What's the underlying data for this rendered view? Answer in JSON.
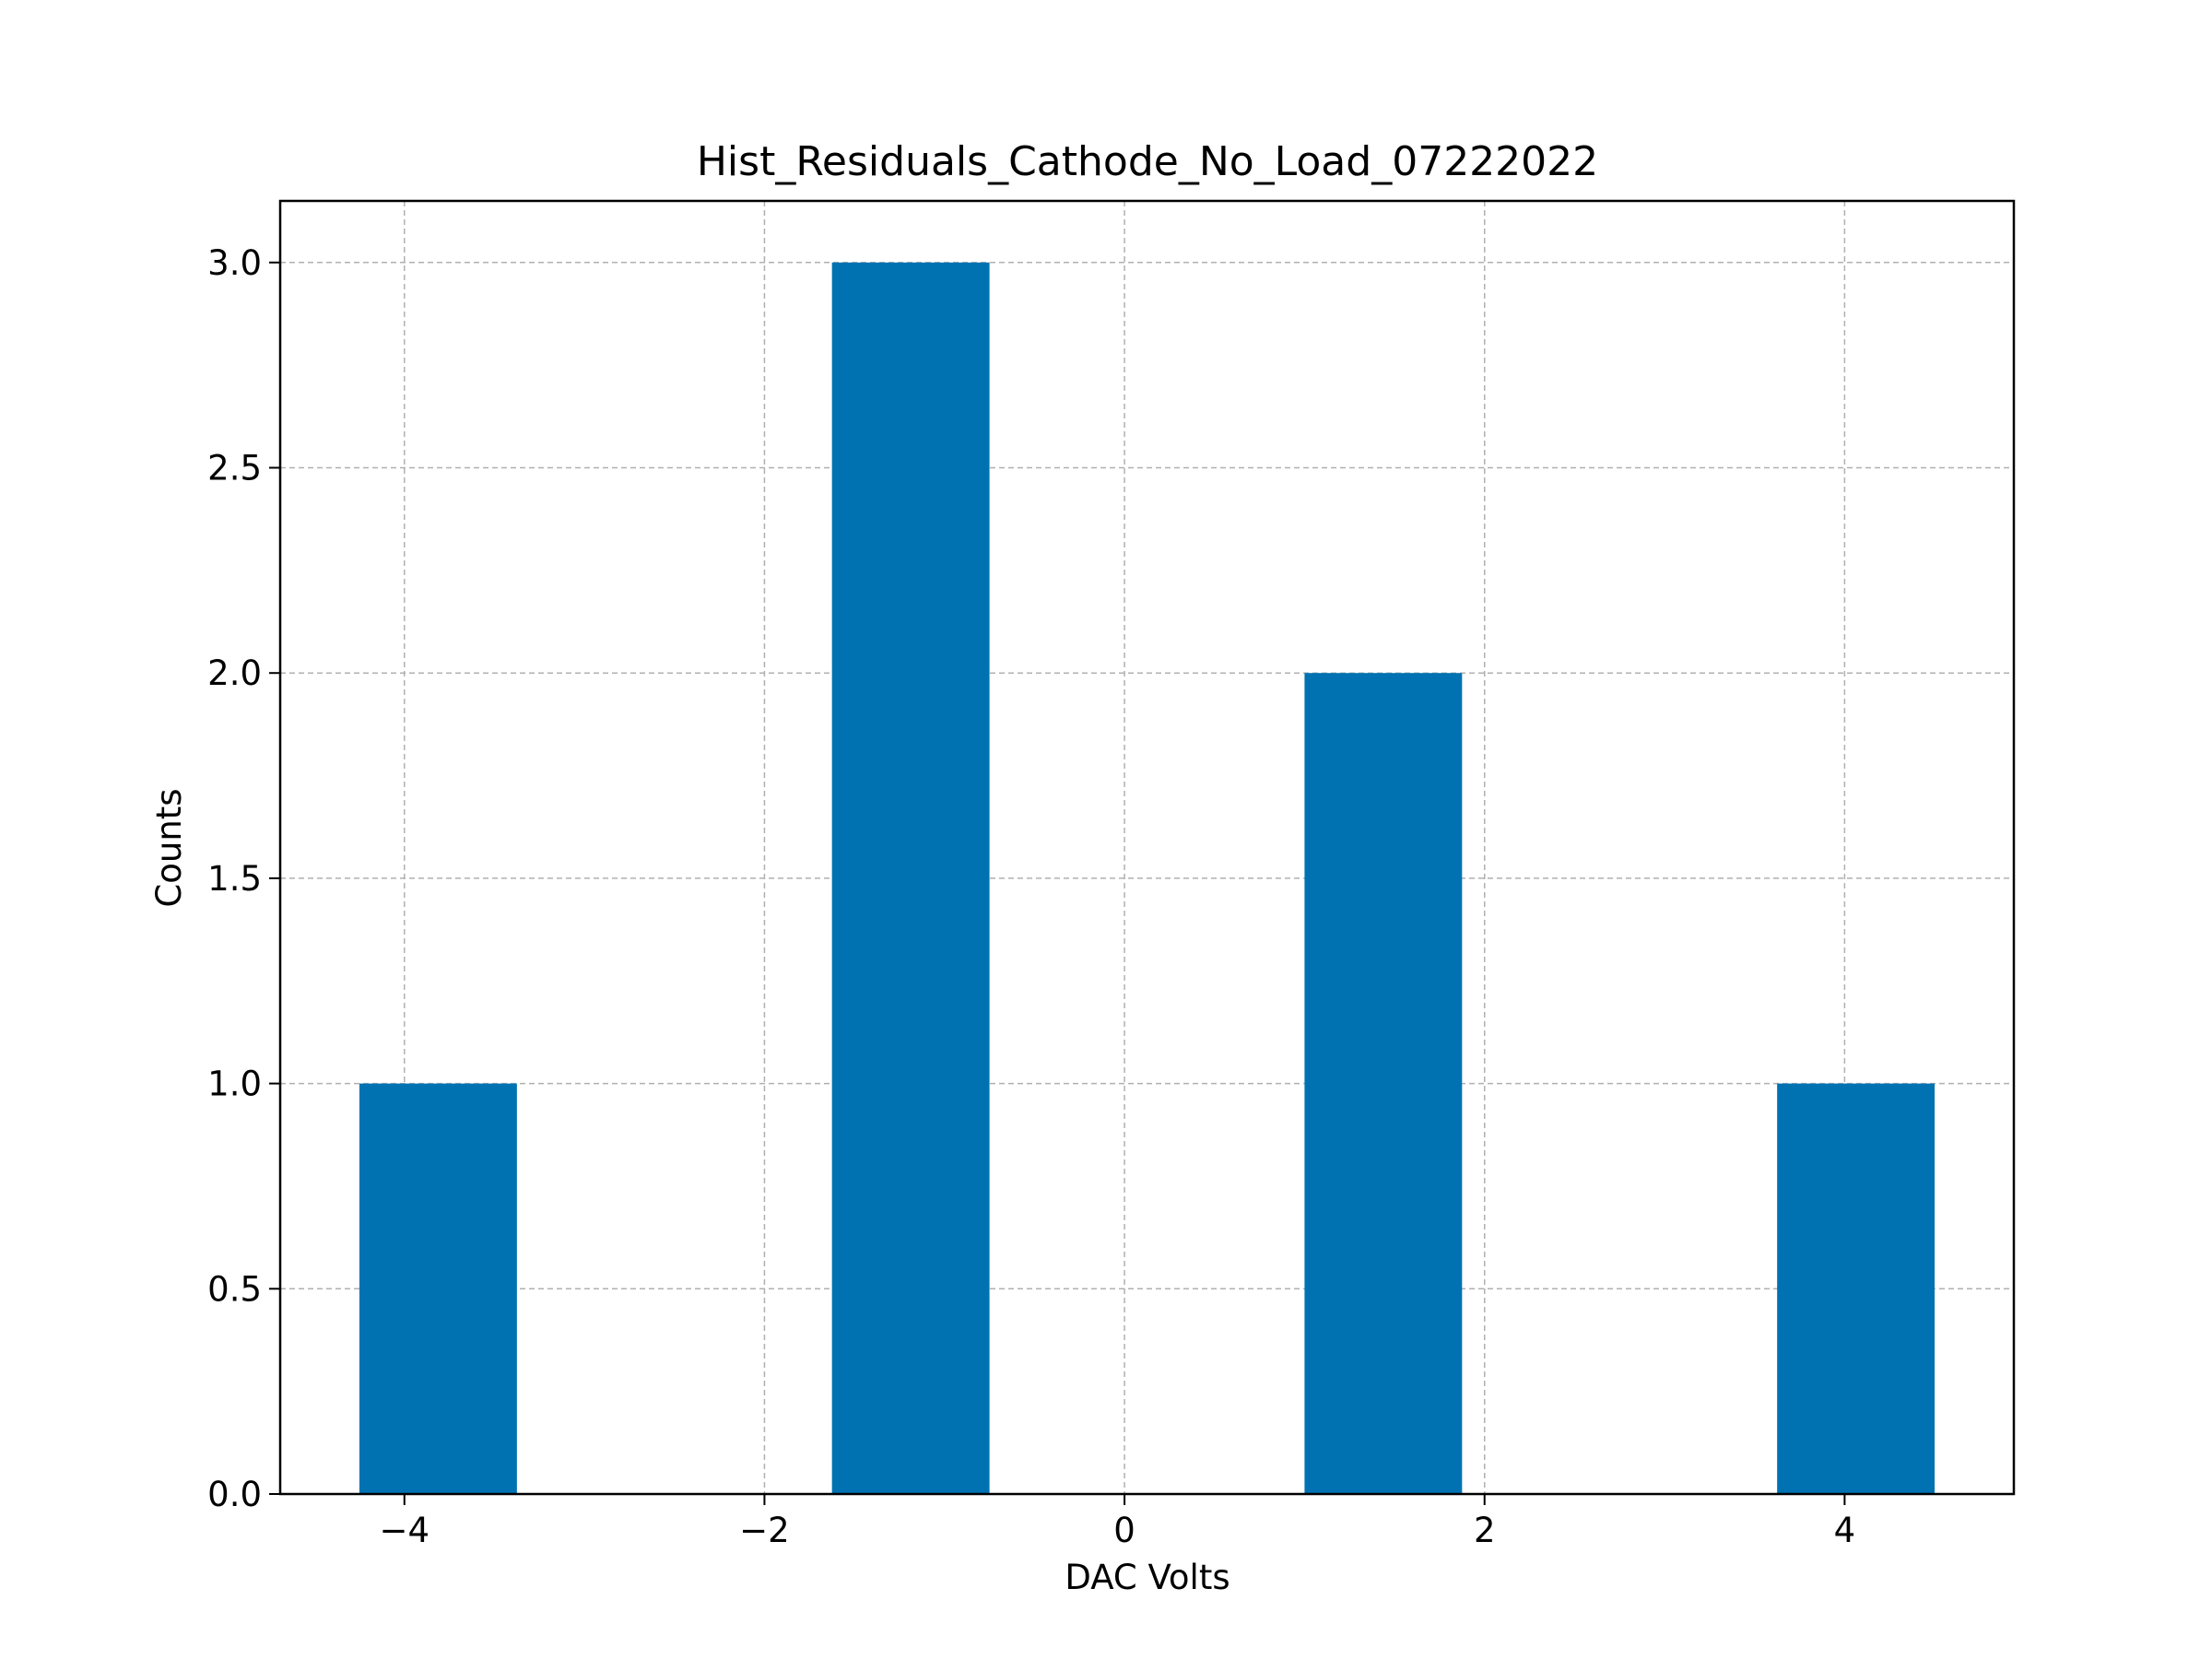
{
  "chart_data": {
    "type": "bar",
    "title": "Hist_Residuals_Cathode_No_Load_07222022",
    "xlabel": "DAC Volts",
    "ylabel": "Counts",
    "bins": [
      {
        "start": -4.25,
        "end": -3.375,
        "count": 1
      },
      {
        "start": -3.375,
        "end": -2.5,
        "count": 0
      },
      {
        "start": -2.5,
        "end": -1.625,
        "count": 0
      },
      {
        "start": -1.625,
        "end": -0.75,
        "count": 3
      },
      {
        "start": -0.75,
        "end": 0.125,
        "count": 0
      },
      {
        "start": 0.125,
        "end": 1.0,
        "count": 0
      },
      {
        "start": 1.0,
        "end": 1.875,
        "count": 2
      },
      {
        "start": 1.875,
        "end": 2.75,
        "count": 0
      },
      {
        "start": 2.75,
        "end": 3.625,
        "count": 0
      },
      {
        "start": 3.625,
        "end": 4.5,
        "count": 1
      }
    ],
    "xlim": [
      -4.69,
      4.94
    ],
    "ylim": [
      0,
      3.15
    ],
    "xticks": [
      -4,
      -2,
      0,
      2,
      4
    ],
    "xtick_labels": [
      "−4",
      "−2",
      "0",
      "2",
      "4"
    ],
    "yticks": [
      0,
      0.5,
      1,
      1.5,
      2,
      2.5,
      3
    ],
    "ytick_labels": [
      "0.0",
      "0.5",
      "1.0",
      "1.5",
      "2.0",
      "2.5",
      "3.0"
    ],
    "grid": true,
    "bar_color": "#0072b2",
    "grid_color": "#b0b0b0"
  }
}
